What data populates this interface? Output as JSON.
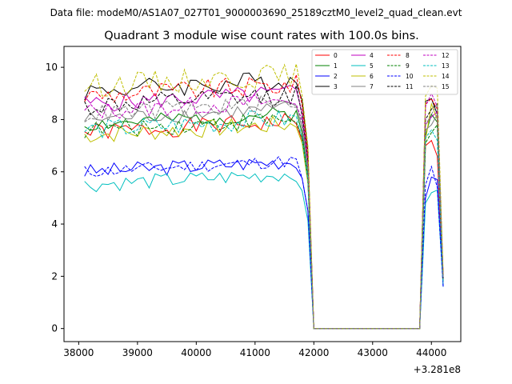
{
  "chart_data": {
    "type": "line",
    "suptitle": "Data file: modeM0/AS1A07_027T01_9000003690_25189cztM0_level2_quad_clean.evt",
    "title": "Quadrant 3 module wise count rates with 100.0s bins.",
    "xlabel": "",
    "ylabel": "",
    "x_offset_label": "+3.281e8",
    "x_ticks": [
      38000,
      39000,
      40000,
      41000,
      42000,
      43000,
      44000
    ],
    "x_tick_labels": [
      "38000",
      "39000",
      "40000",
      "41000",
      "42000",
      "43000",
      "44000"
    ],
    "y_ticks": [
      0,
      2,
      4,
      6,
      8,
      10
    ],
    "y_tick_labels": [
      "0",
      "2",
      "4",
      "6",
      "8",
      "10"
    ],
    "xlim": [
      37750,
      44500
    ],
    "ylim": [
      -0.5,
      10.8
    ],
    "legend_position": "upper right",
    "x": {
      "start": 38100,
      "step": 100,
      "active_end": 41900,
      "gap_start": 42000,
      "gap_end": 43800,
      "tail": [
        43900,
        44000,
        44100,
        44200
      ]
    },
    "series": [
      {
        "name": "0",
        "color": "#ff0000",
        "dash": false,
        "base": 7.5,
        "amp": 0.35,
        "seed": 1,
        "tail": [
          7.0,
          7.2,
          6.6,
          1.8
        ]
      },
      {
        "name": "1",
        "color": "#008000",
        "dash": false,
        "base": 7.8,
        "amp": 0.3,
        "seed": 2,
        "tail": [
          7.4,
          8.2,
          7.9,
          1.8
        ]
      },
      {
        "name": "2",
        "color": "#0000ff",
        "dash": false,
        "base": 6.0,
        "amp": 0.3,
        "seed": 3,
        "tail": [
          5.0,
          5.8,
          5.7,
          1.6
        ]
      },
      {
        "name": "3",
        "color": "#000000",
        "dash": false,
        "base": 9.1,
        "amp": 0.4,
        "seed": 4,
        "tail": [
          8.7,
          8.8,
          8.2,
          2.0
        ]
      },
      {
        "name": "4",
        "color": "#c000c0",
        "dash": false,
        "base": 8.6,
        "amp": 0.35,
        "seed": 5,
        "tail": [
          7.8,
          8.1,
          8.3,
          1.9
        ]
      },
      {
        "name": "5",
        "color": "#00bfbf",
        "dash": false,
        "base": 5.5,
        "amp": 0.3,
        "seed": 6,
        "tail": [
          4.8,
          5.2,
          5.3,
          1.6
        ]
      },
      {
        "name": "6",
        "color": "#bfbf00",
        "dash": false,
        "base": 7.4,
        "amp": 0.35,
        "seed": 7,
        "tail": [
          7.2,
          8.6,
          8.0,
          1.8
        ]
      },
      {
        "name": "7",
        "color": "#808080",
        "dash": false,
        "base": 8.0,
        "amp": 0.3,
        "seed": 8,
        "tail": [
          7.6,
          7.8,
          8.2,
          1.9
        ]
      },
      {
        "name": "8",
        "color": "#ff0000",
        "dash": true,
        "base": 8.9,
        "amp": 0.4,
        "seed": 9,
        "tail": [
          8.6,
          8.8,
          8.4,
          2.0
        ]
      },
      {
        "name": "9",
        "color": "#008000",
        "dash": true,
        "base": 7.6,
        "amp": 0.35,
        "seed": 10,
        "tail": [
          7.1,
          7.5,
          7.8,
          1.8
        ]
      },
      {
        "name": "10",
        "color": "#0000ff",
        "dash": true,
        "base": 6.0,
        "amp": 0.25,
        "seed": 11,
        "tail": [
          5.5,
          6.2,
          5.4,
          1.6
        ]
      },
      {
        "name": "11",
        "color": "#000000",
        "dash": true,
        "base": 8.5,
        "amp": 0.4,
        "seed": 12,
        "tail": [
          8.0,
          8.4,
          8.6,
          1.9
        ]
      },
      {
        "name": "12",
        "color": "#c000c0",
        "dash": true,
        "base": 8.3,
        "amp": 0.35,
        "seed": 13,
        "tail": [
          8.5,
          9.0,
          8.5,
          2.0
        ]
      },
      {
        "name": "13",
        "color": "#00bfbf",
        "dash": true,
        "base": 7.6,
        "amp": 0.4,
        "seed": 14,
        "tail": [
          7.3,
          7.6,
          7.2,
          1.8
        ]
      },
      {
        "name": "14",
        "color": "#bfbf00",
        "dash": true,
        "base": 9.3,
        "amp": 0.45,
        "seed": 15,
        "tail": [
          8.9,
          9.3,
          9.2,
          2.1
        ]
      },
      {
        "name": "15",
        "color": "#808080",
        "dash": true,
        "base": 8.2,
        "amp": 0.35,
        "seed": 16,
        "tail": [
          7.8,
          8.2,
          8.6,
          1.9
        ]
      }
    ]
  }
}
